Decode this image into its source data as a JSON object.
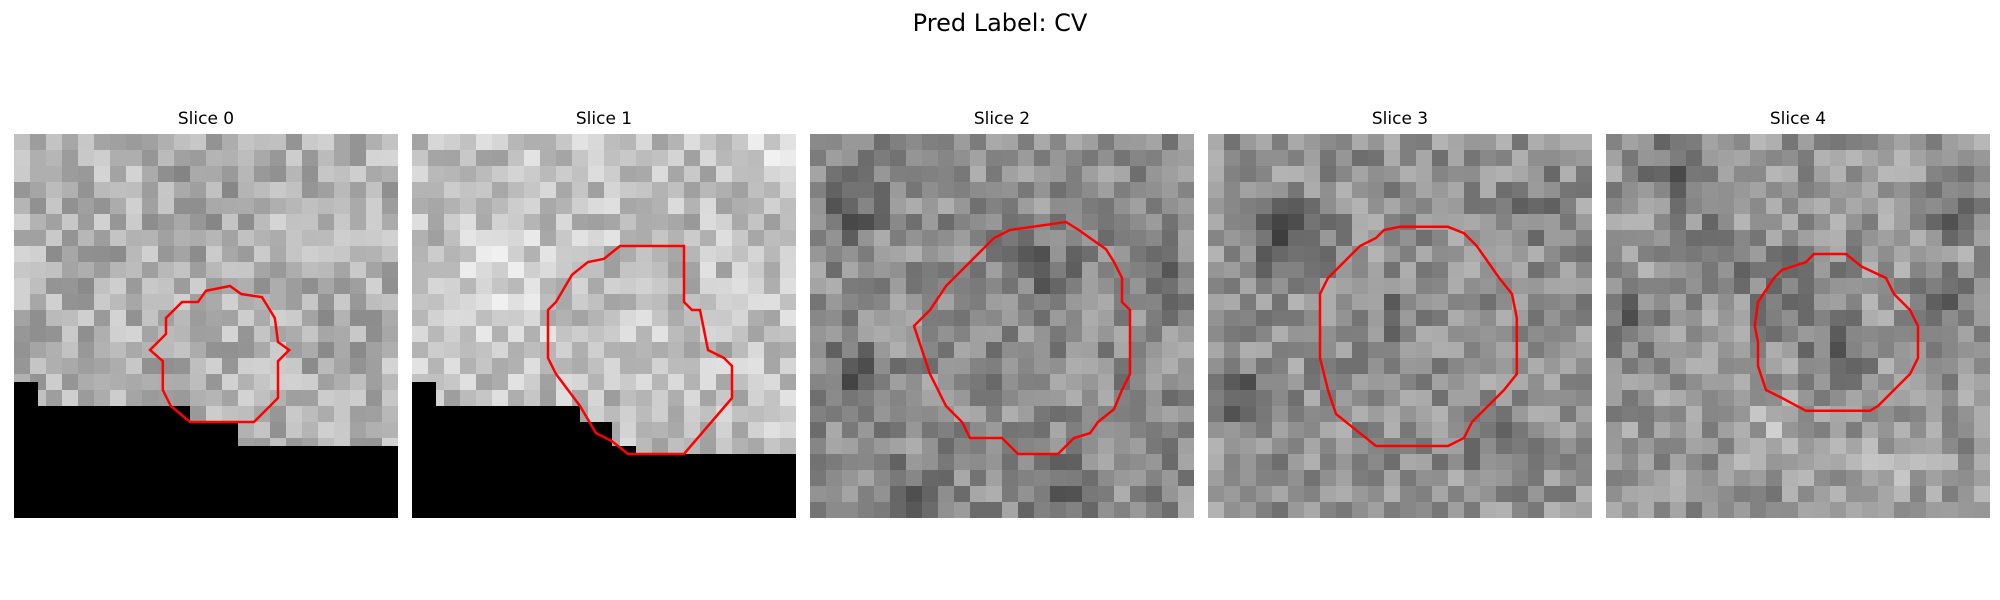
{
  "figure": {
    "title": "Pred Label: CV"
  },
  "colors": {
    "contour": "#ff0000",
    "mask": "#000000"
  },
  "panels": [
    {
      "title": "Slice 0",
      "base_gray": 178,
      "mask": "bottom-left stepped"
    },
    {
      "title": "Slice 1",
      "base_gray": 192,
      "mask": "bottom-left stepped"
    },
    {
      "title": "Slice 2",
      "base_gray": 140,
      "mask": "none"
    },
    {
      "title": "Slice 3",
      "base_gray": 145,
      "mask": "none"
    },
    {
      "title": "Slice 4",
      "base_gray": 150,
      "mask": "none"
    }
  ]
}
